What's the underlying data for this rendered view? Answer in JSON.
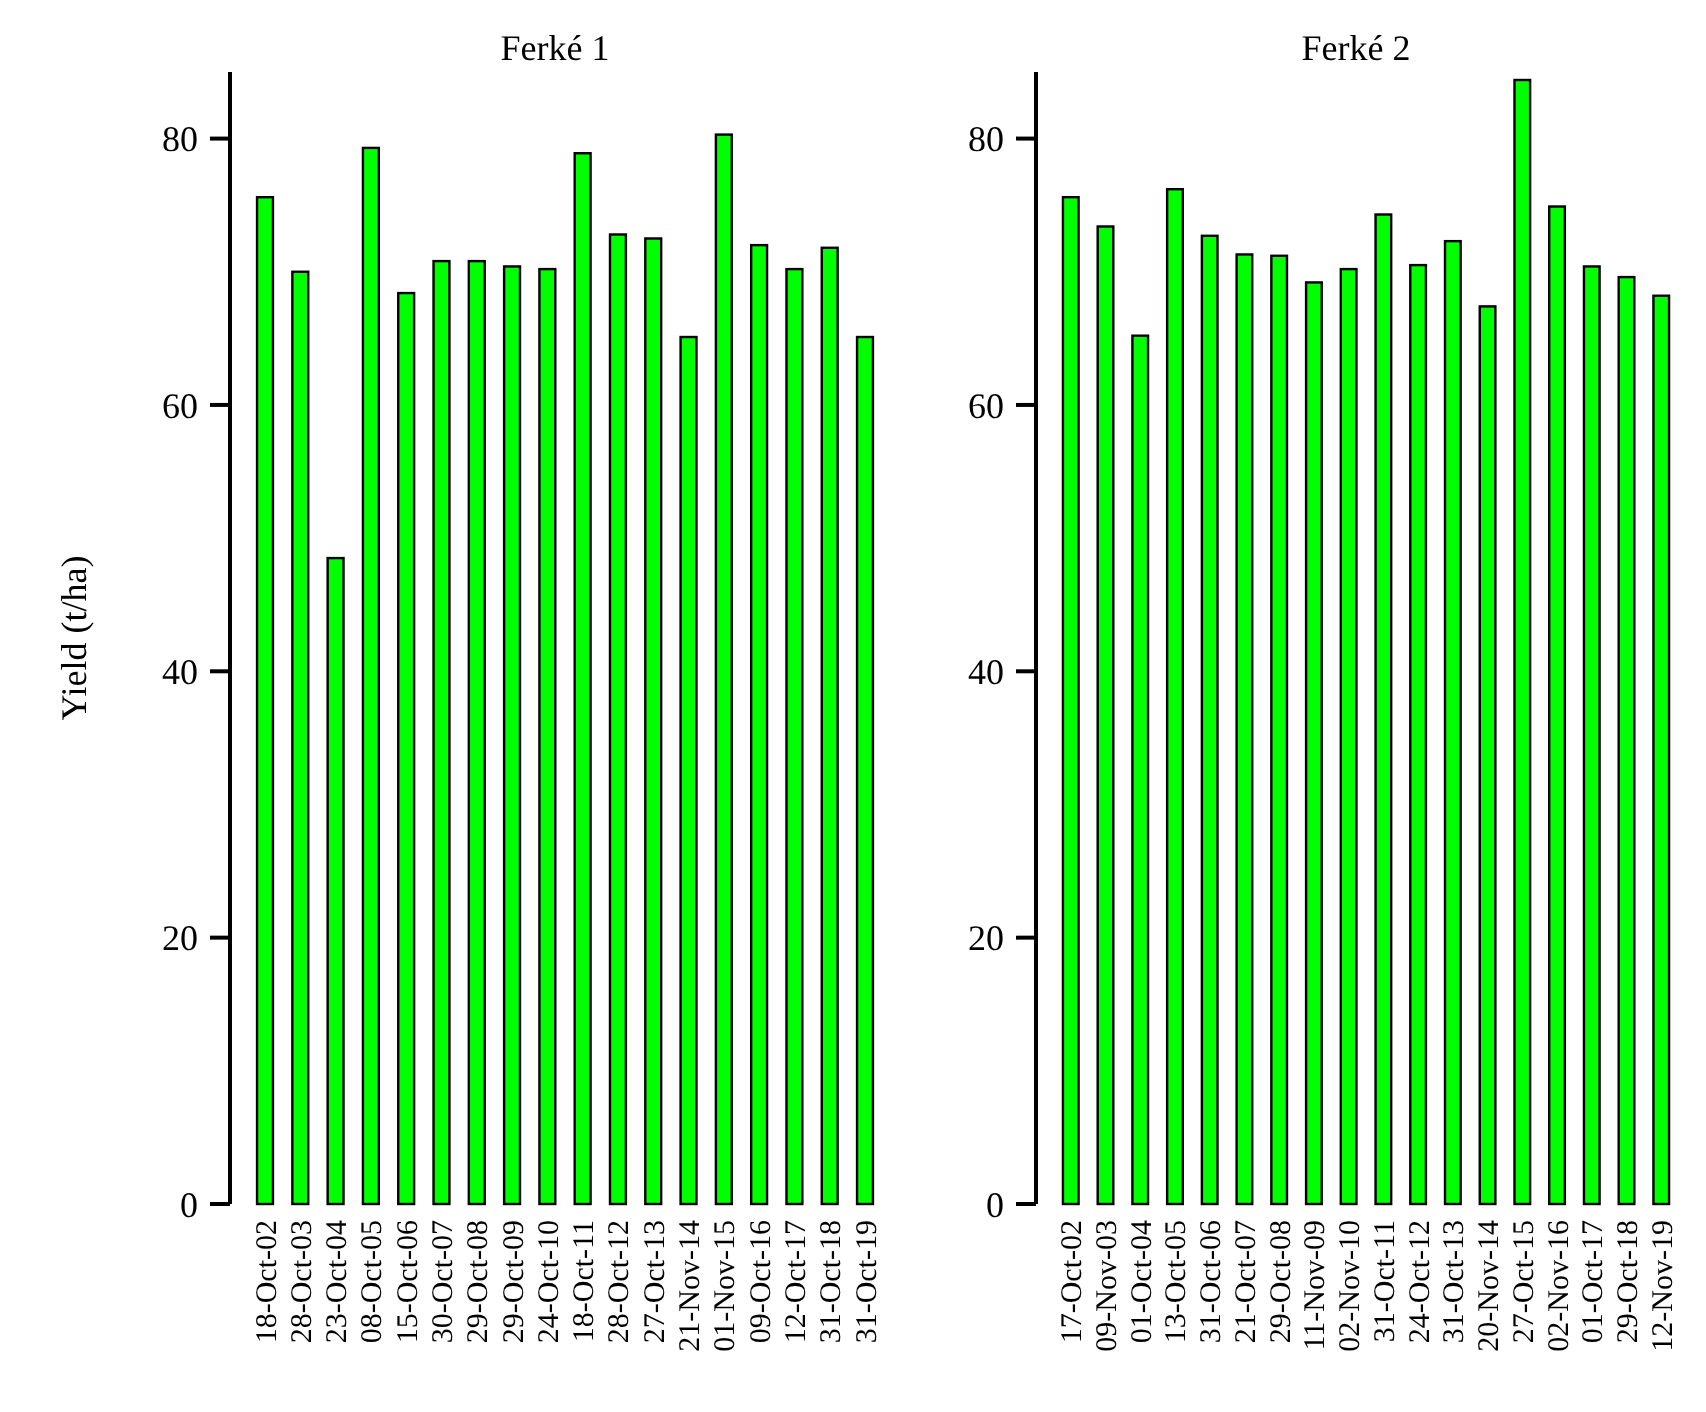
{
  "chart_data": [
    {
      "type": "bar",
      "title": "Ferké 1",
      "ylabel": "Yield (t/ha)",
      "categories": [
        "18-Oct-02",
        "28-Oct-03",
        "23-Oct-04",
        "08-Oct-05",
        "15-Oct-06",
        "30-Oct-07",
        "29-Oct-08",
        "29-Oct-09",
        "24-Oct-10",
        "18-Oct-11",
        "28-Oct-12",
        "27-Oct-13",
        "21-Nov-14",
        "01-Nov-15",
        "09-Oct-16",
        "12-Oct-17",
        "31-Oct-18",
        "31-Oct-19"
      ],
      "values": [
        75.6,
        70.0,
        48.5,
        79.3,
        68.4,
        70.8,
        70.8,
        70.4,
        70.2,
        78.9,
        72.8,
        72.5,
        65.1,
        80.3,
        72.0,
        70.2,
        71.8,
        65.1
      ],
      "color": "#00ff00",
      "ylim": [
        0,
        85
      ],
      "yticks": [
        0,
        20,
        40,
        60,
        80
      ]
    },
    {
      "type": "bar",
      "title": "Ferké 2",
      "categories": [
        "17-Oct-02",
        "09-Nov-03",
        "01-Oct-04",
        "13-Oct-05",
        "31-Oct-06",
        "21-Oct-07",
        "29-Oct-08",
        "11-Nov-09",
        "02-Nov-10",
        "31-Oct-11",
        "24-Oct-12",
        "31-Oct-13",
        "20-Nov-14",
        "27-Oct-15",
        "02-Nov-16",
        "01-Oct-17",
        "29-Oct-18",
        "12-Nov-19"
      ],
      "values": [
        75.6,
        73.4,
        65.2,
        76.2,
        72.7,
        71.3,
        71.2,
        69.2,
        70.2,
        74.3,
        70.5,
        72.3,
        67.4,
        84.4,
        74.9,
        70.4,
        69.6,
        68.2
      ],
      "color": "#00ff00",
      "ylim": [
        0,
        85
      ],
      "yticks": [
        0,
        20,
        40,
        60,
        80
      ]
    }
  ]
}
